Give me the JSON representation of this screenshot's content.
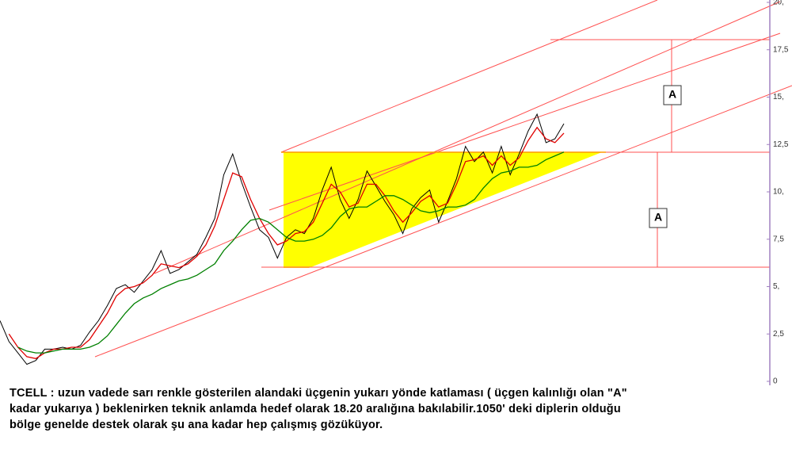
{
  "chart_data": {
    "type": "line",
    "ylim": [
      0,
      20
    ],
    "yticks": [
      0,
      {
        "value": 2.5,
        "label": "2,5"
      },
      {
        "value": 5,
        "label": "5,"
      },
      {
        "value": 7.5,
        "label": "7,5"
      },
      {
        "value": 10,
        "label": "10,"
      },
      {
        "value": 12.5,
        "label": "12,5"
      },
      {
        "value": 15,
        "label": "15,"
      },
      {
        "value": 17.5,
        "label": "17,5"
      },
      {
        "value": 20,
        "label": "20,"
      }
    ],
    "series": [
      {
        "color": "#000000",
        "values": [
          3.2,
          2.1,
          1.5,
          0.9,
          1.1,
          1.7,
          1.7,
          1.8,
          1.7,
          1.9,
          2.6,
          3.2,
          4.0,
          4.9,
          5.1,
          4.7,
          5.3,
          5.9,
          6.9,
          5.7,
          5.9,
          6.3,
          6.7,
          7.6,
          8.6,
          10.9,
          12.0,
          10.5,
          9.2,
          8.0,
          7.6,
          6.5,
          7.6,
          8.0,
          7.8,
          8.6,
          10.1,
          11.3,
          9.6,
          8.6,
          9.6,
          11.1,
          10.3,
          9.5,
          8.8,
          7.8,
          9.1,
          9.7,
          10.1,
          8.4,
          9.5,
          10.7,
          12.4,
          11.6,
          12.1,
          11.0,
          12.4,
          10.9,
          12.0,
          13.2,
          14.1,
          12.6,
          12.8,
          13.6
        ]
      },
      {
        "color": "#e00000",
        "values": [
          null,
          2.5,
          1.8,
          1.3,
          1.2,
          1.5,
          1.7,
          1.7,
          1.8,
          1.8,
          2.2,
          2.9,
          3.6,
          4.5,
          4.9,
          5.0,
          5.2,
          5.6,
          6.2,
          6.1,
          6.0,
          6.2,
          6.6,
          7.2,
          8.2,
          9.6,
          11.0,
          10.8,
          9.6,
          8.6,
          7.8,
          7.2,
          7.4,
          7.8,
          7.9,
          8.4,
          9.4,
          10.4,
          10.0,
          9.2,
          9.4,
          10.4,
          10.4,
          9.8,
          9.0,
          8.4,
          8.9,
          9.5,
          9.8,
          9.2,
          9.4,
          10.4,
          11.6,
          11.7,
          11.9,
          11.4,
          11.9,
          11.4,
          11.8,
          12.7,
          13.4,
          12.8,
          12.6,
          13.1
        ]
      },
      {
        "color": "#008000",
        "values": [
          null,
          null,
          1.8,
          1.6,
          1.5,
          1.5,
          1.6,
          1.7,
          1.7,
          1.7,
          1.8,
          2.0,
          2.4,
          3.0,
          3.6,
          4.1,
          4.4,
          4.6,
          4.9,
          5.1,
          5.3,
          5.4,
          5.6,
          5.9,
          6.2,
          6.9,
          7.4,
          8.0,
          8.5,
          8.6,
          8.4,
          8.0,
          7.6,
          7.4,
          7.4,
          7.5,
          7.7,
          8.1,
          8.7,
          9.1,
          9.2,
          9.2,
          9.5,
          9.8,
          9.8,
          9.6,
          9.3,
          9.0,
          8.9,
          9.0,
          9.2,
          9.2,
          9.3,
          9.6,
          10.2,
          10.7,
          11.0,
          11.1,
          11.3,
          11.3,
          11.4,
          11.7,
          11.9,
          12.1
        ]
      }
    ],
    "annotations": [
      "A",
      "A"
    ]
  },
  "caption": {
    "lines": [
      "TCELL : uzun vadede sarı renkle gösterilen alandaki üçgenin yukarı yönde katlaması ( üçgen kalınlığı olan \"A\"",
      "kadar yukarıya ) beklenirken teknik anlamda hedef olarak 18.20 aralığına bakılabilir.1050' deki diplerin olduğu",
      "bölge genelde destek olarak şu ana kadar hep çalışmış gözüküyor."
    ]
  }
}
